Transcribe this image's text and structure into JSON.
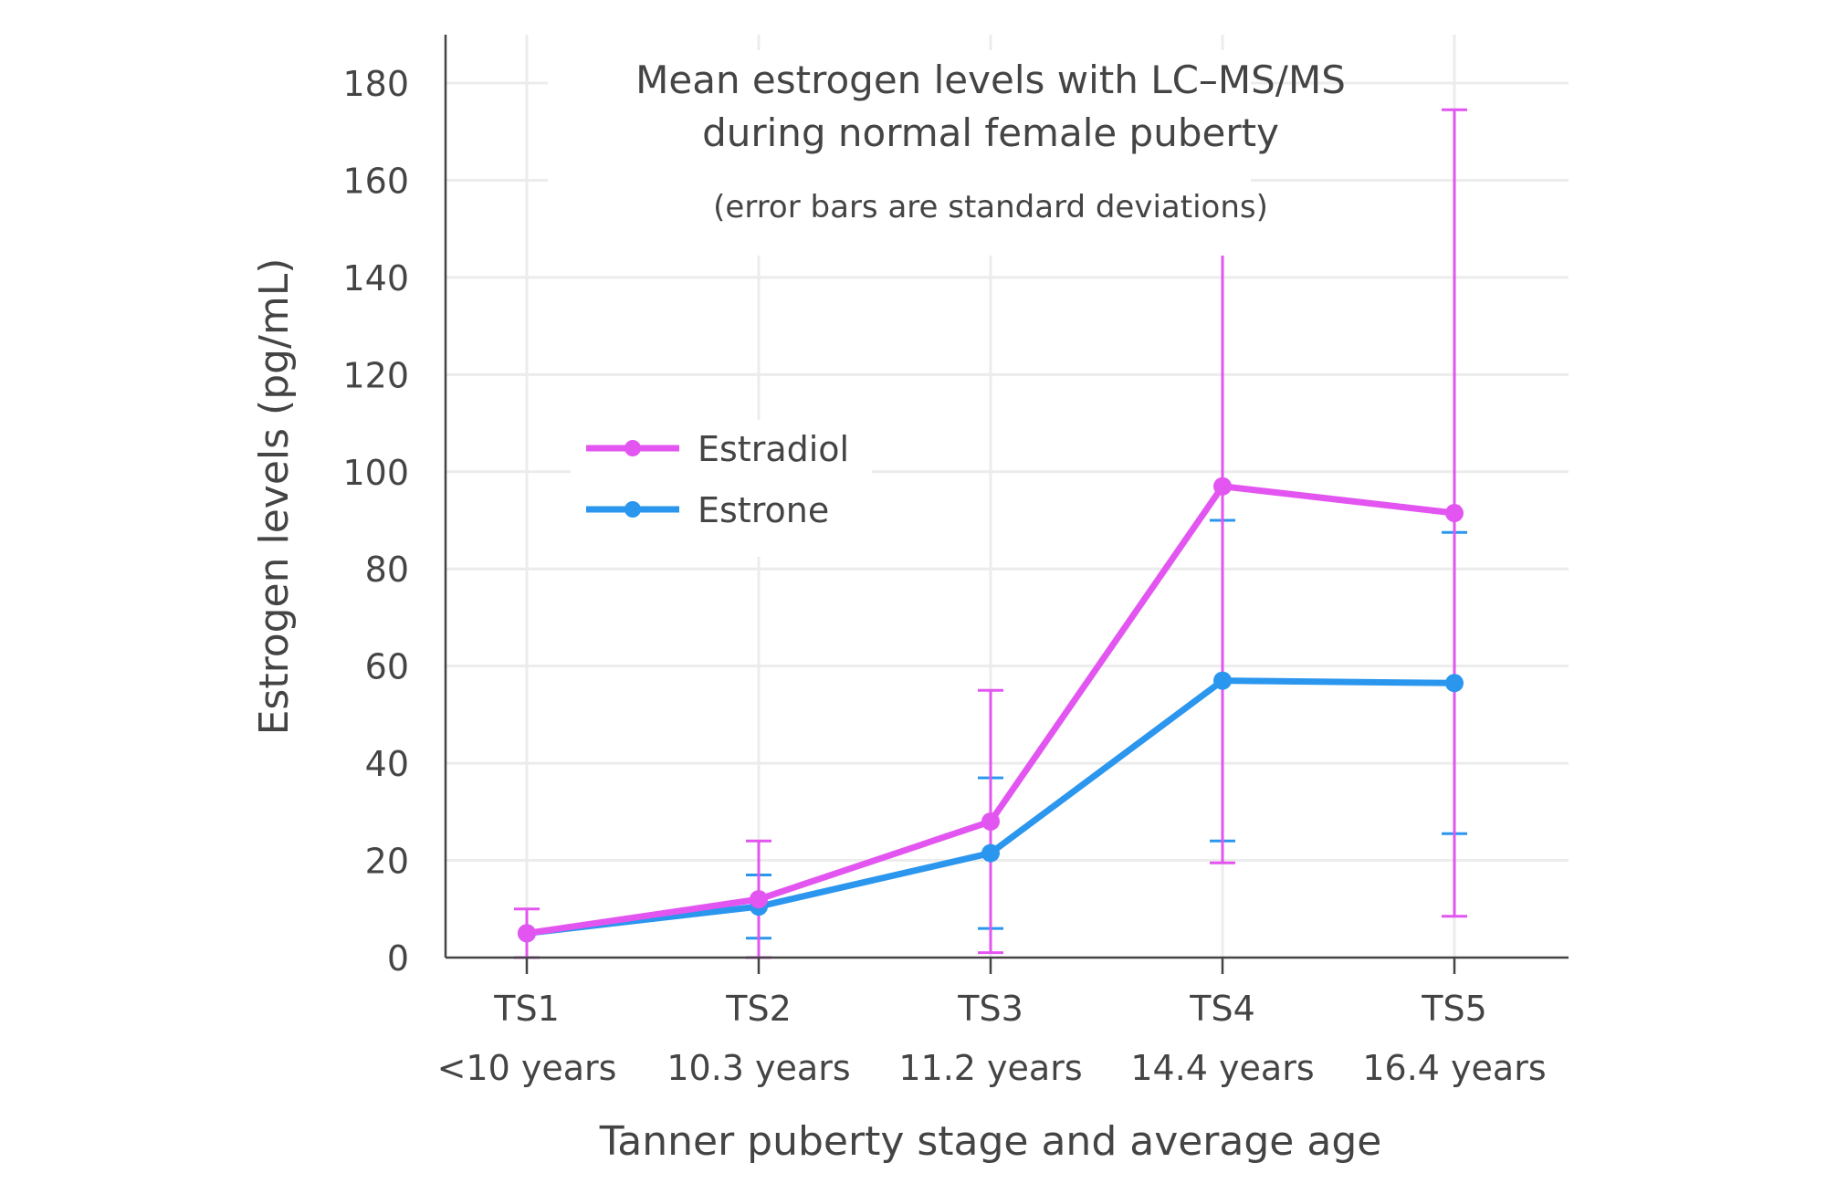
{
  "chart_data": {
    "type": "line",
    "title": "Mean estrogen levels with LC–MS/MS",
    "title_line2": "during normal female puberty",
    "subtitle": "(error bars are standard deviations)",
    "xlabel": "Tanner puberty stage and average age",
    "ylabel": "Estrogen levels (pg/mL)",
    "categories": [
      "TS1",
      "TS2",
      "TS3",
      "TS4",
      "TS5"
    ],
    "category_sublabels": [
      "<10 years",
      "10.3 years",
      "11.2 years",
      "14.4 years",
      "16.4 years"
    ],
    "yticks": [
      0,
      20,
      40,
      60,
      80,
      100,
      120,
      140,
      160,
      180
    ],
    "ylim": [
      0,
      190
    ],
    "grid": true,
    "legend_position": "upper-left",
    "series": [
      {
        "name": "Estradiol",
        "color": "#e355f0",
        "values": [
          5,
          12,
          28,
          97,
          91.5
        ],
        "error": [
          5,
          12,
          27,
          77.5,
          83
        ]
      },
      {
        "name": "Estrone",
        "color": "#2b96ee",
        "values": [
          5,
          10.5,
          21.5,
          57,
          56.5
        ],
        "error": [
          0,
          6.5,
          15.5,
          33,
          31
        ]
      }
    ]
  }
}
